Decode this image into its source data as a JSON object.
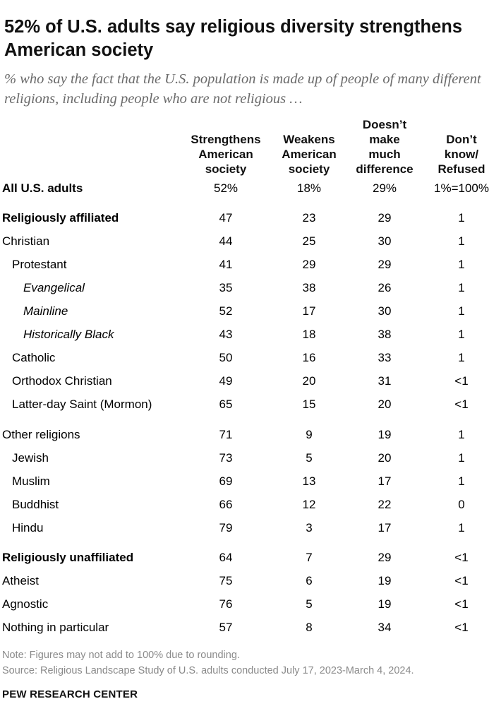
{
  "header": {
    "title": "52% of U.S. adults say religious diversity strengthens American society",
    "subtitle": "% who say the fact that the U.S. population is made up of people of many different religions, including people who are not religious …"
  },
  "chart_data": {
    "type": "table",
    "columns": [
      "Strengthens American society",
      "Weakens American society",
      "Doesn’t make much difference",
      "Don’t know/ Refused"
    ],
    "rows": [
      {
        "label": "All U.S. adults",
        "values": [
          "52%",
          "18%",
          "29%",
          "1%=100%"
        ]
      },
      {
        "label": "Religiously affiliated",
        "values": [
          "47",
          "23",
          "29",
          "1"
        ]
      },
      {
        "label": "Christian",
        "values": [
          "44",
          "25",
          "30",
          "1"
        ]
      },
      {
        "label": "Protestant",
        "values": [
          "41",
          "29",
          "29",
          "1"
        ]
      },
      {
        "label": "Evangelical",
        "values": [
          "35",
          "38",
          "26",
          "1"
        ]
      },
      {
        "label": "Mainline",
        "values": [
          "52",
          "17",
          "30",
          "1"
        ]
      },
      {
        "label": "Historically Black",
        "values": [
          "43",
          "18",
          "38",
          "1"
        ]
      },
      {
        "label": "Catholic",
        "values": [
          "50",
          "16",
          "33",
          "1"
        ]
      },
      {
        "label": "Orthodox Christian",
        "values": [
          "49",
          "20",
          "31",
          "<1"
        ]
      },
      {
        "label": "Latter-day Saint (Mormon)",
        "values": [
          "65",
          "15",
          "20",
          "<1"
        ]
      },
      {
        "label": "Other religions",
        "values": [
          "71",
          "9",
          "19",
          "1"
        ]
      },
      {
        "label": "Jewish",
        "values": [
          "73",
          "5",
          "20",
          "1"
        ]
      },
      {
        "label": "Muslim",
        "values": [
          "69",
          "13",
          "17",
          "1"
        ]
      },
      {
        "label": "Buddhist",
        "values": [
          "66",
          "12",
          "22",
          "0"
        ]
      },
      {
        "label": "Hindu",
        "values": [
          "79",
          "3",
          "17",
          "1"
        ]
      },
      {
        "label": "Religiously unaffiliated",
        "values": [
          "64",
          "7",
          "29",
          "<1"
        ]
      },
      {
        "label": "Atheist",
        "values": [
          "75",
          "6",
          "19",
          "<1"
        ]
      },
      {
        "label": "Agnostic",
        "values": [
          "76",
          "5",
          "19",
          "<1"
        ]
      },
      {
        "label": "Nothing in particular",
        "values": [
          "57",
          "8",
          "34",
          "<1"
        ]
      }
    ]
  },
  "footer": {
    "note": "Note: Figures may not add to 100% due to rounding.",
    "source": "Source: Religious Landscape Study of U.S. adults conducted July 17, 2023-March 4, 2024.",
    "brand": "PEW RESEARCH CENTER"
  }
}
